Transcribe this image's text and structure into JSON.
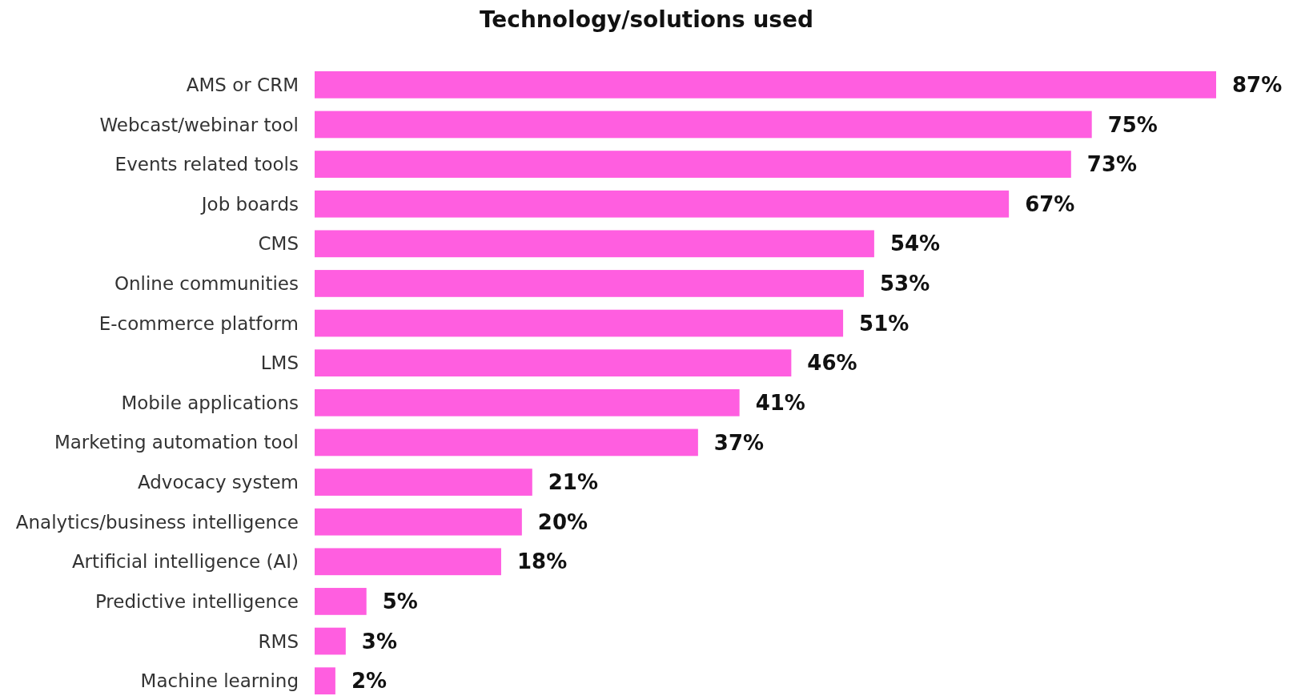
{
  "chart_data": {
    "type": "bar",
    "orientation": "horizontal",
    "title": "Technology/solutions used",
    "categories": [
      "AMS or CRM",
      "Webcast/webinar tool",
      "Events related tools",
      "Job boards",
      "CMS",
      "Online communities",
      "E-commerce platform",
      "LMS",
      "Mobile applications",
      "Marketing automation tool",
      "Advocacy system",
      "Analytics/business intelligence",
      "Artificial intelligence (AI)",
      "Predictive intelligence",
      "RMS",
      "Machine learning"
    ],
    "values": [
      87,
      75,
      73,
      67,
      54,
      53,
      51,
      46,
      41,
      37,
      21,
      20,
      18,
      5,
      3,
      2
    ],
    "value_labels": [
      "87%",
      "75%",
      "73%",
      "67%",
      "54%",
      "53%",
      "51%",
      "46%",
      "41%",
      "37%",
      "21%",
      "20%",
      "18%",
      "5%",
      "3%",
      "2%"
    ],
    "color": "#ff5ee0"
  }
}
